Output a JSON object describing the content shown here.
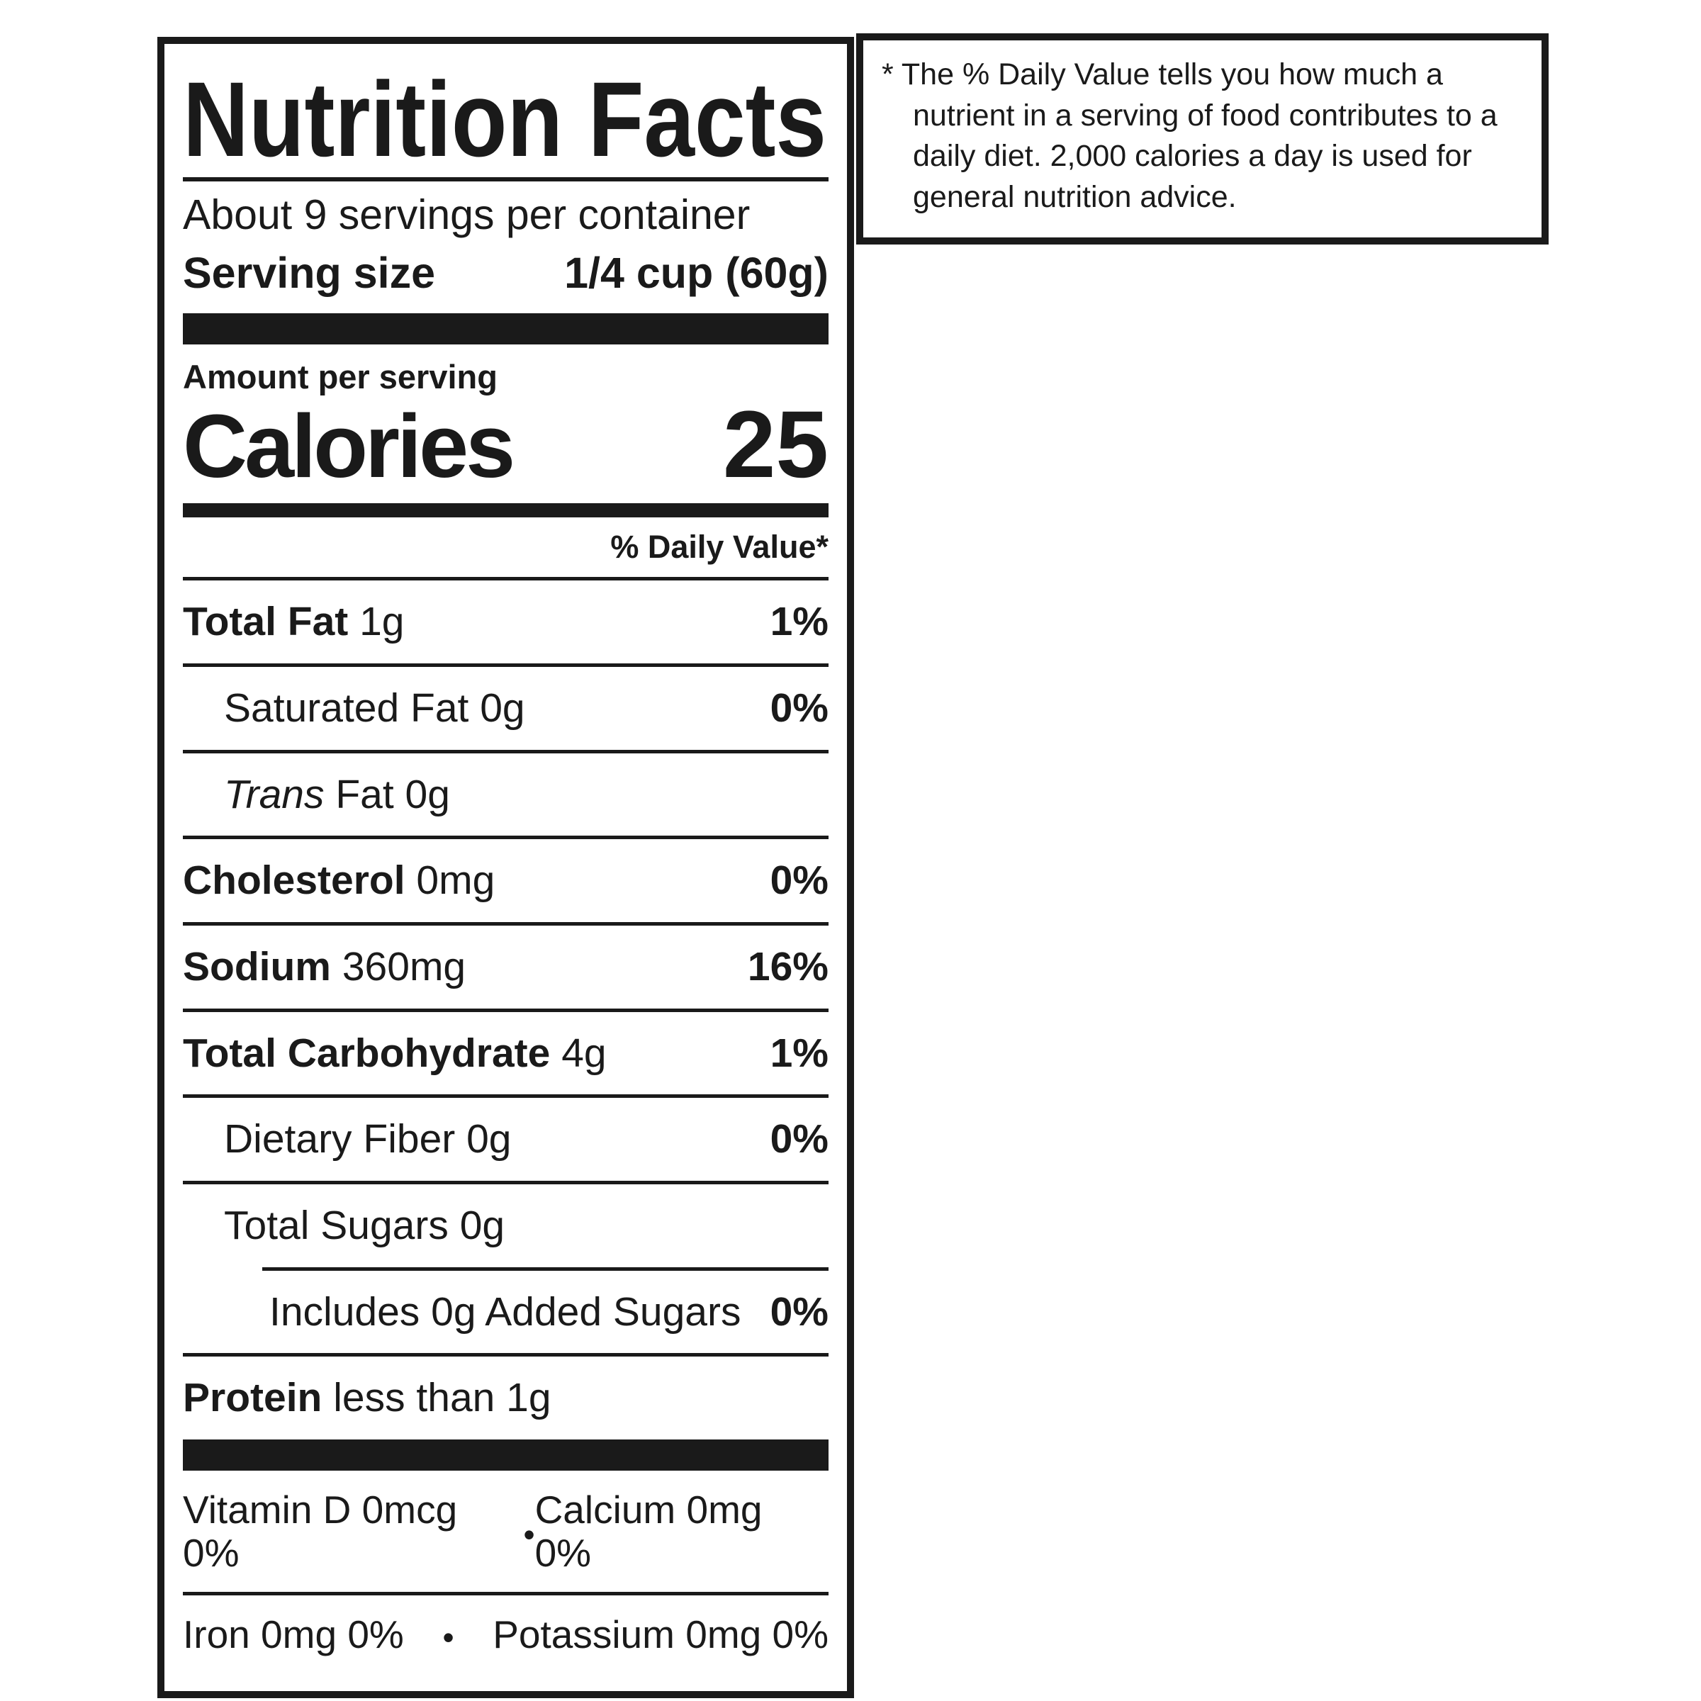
{
  "label": {
    "title": "Nutrition Facts",
    "servings_per_container": "About 9 servings per container",
    "serving_size_label": "Serving size",
    "serving_size_value": "1/4 cup (60g)",
    "amount_per_serving": "Amount per serving",
    "calories_label": "Calories",
    "calories_value": "25",
    "daily_value_header": "% Daily Value*",
    "rows": [
      {
        "name": "Total Fat",
        "amount": "1g",
        "dv": "1%"
      },
      {
        "name": "Saturated Fat",
        "amount": "0g",
        "dv": "0%"
      },
      {
        "name": "Trans",
        "amount": "Fat 0g",
        "dv": ""
      },
      {
        "name": "Cholesterol",
        "amount": "0mg",
        "dv": "0%"
      },
      {
        "name": "Sodium",
        "amount": "360mg",
        "dv": "16%"
      },
      {
        "name": "Total Carbohydrate",
        "amount": "4g",
        "dv": "1%"
      },
      {
        "name": "Dietary Fiber",
        "amount": "0g",
        "dv": "0%"
      },
      {
        "name": "Total Sugars",
        "amount": "0g",
        "dv": ""
      },
      {
        "name": "Includes 0g Added Sugars",
        "amount": "",
        "dv": "0%"
      },
      {
        "name": "Protein",
        "amount": "less than 1g",
        "dv": ""
      }
    ],
    "micronutrients": [
      {
        "left": "Vitamin D 0mcg 0%",
        "right": "Calcium 0mg 0%"
      },
      {
        "left": "Iron 0mg 0%",
        "right": "Potassium 0mg 0%"
      }
    ],
    "bullet": "•"
  },
  "footnote": {
    "marker": "*",
    "text": "The % Daily Value tells you how much a nutrient in a serving of food contributes to a daily diet. 2,000 calories a day is used for general nutrition advice."
  }
}
